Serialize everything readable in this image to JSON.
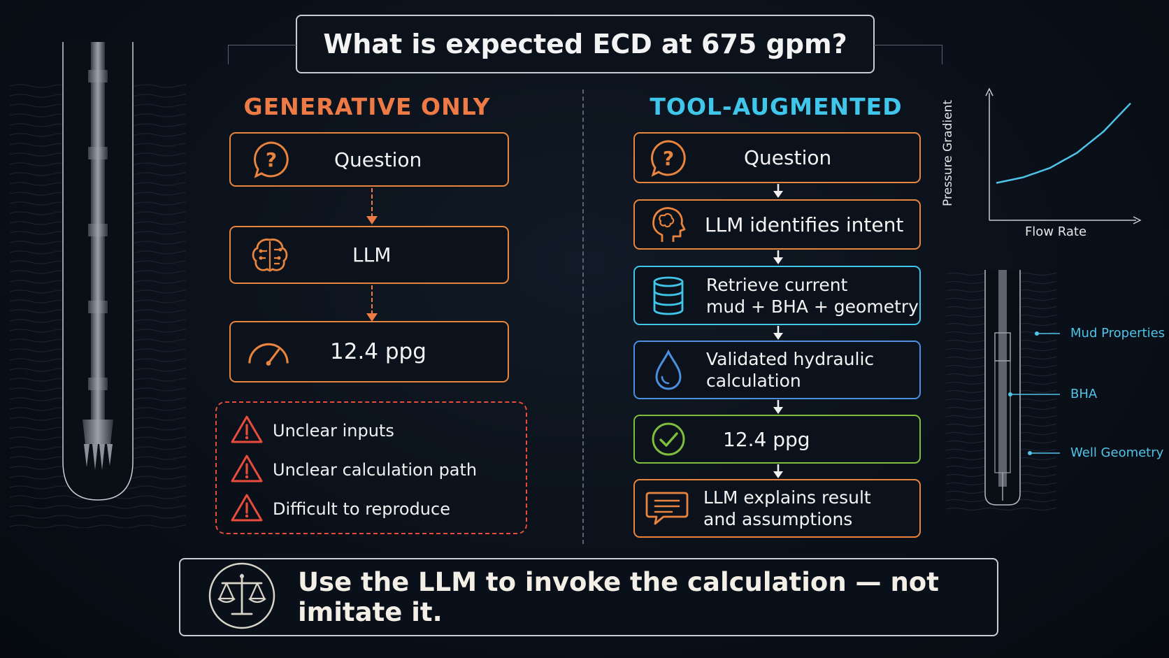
{
  "title": "What is expected ECD at 675 gpm?",
  "generative": {
    "heading": "GENERATIVE ONLY",
    "steps": [
      "Question",
      "LLM",
      "12.4 ppg"
    ],
    "issues": [
      "Unclear inputs",
      "Unclear calculation path",
      "Difficult to reproduce"
    ]
  },
  "tool": {
    "heading": "TOOL-AUGMENTED",
    "steps": [
      {
        "line1": "Question",
        "line2": ""
      },
      {
        "line1": "LLM identifies intent",
        "line2": ""
      },
      {
        "line1": "Retrieve current",
        "line2": "mud + BHA + geometry"
      },
      {
        "line1": "Validated hydraulic",
        "line2": "calculation"
      },
      {
        "line1": "12.4 ppg",
        "line2": ""
      },
      {
        "line1": "LLM explains result",
        "line2": "and assumptions"
      }
    ]
  },
  "takeaway": "Use the LLM to invoke the calculation — not imitate it.",
  "chart_data": {
    "type": "line",
    "xlabel": "Flow Rate",
    "ylabel": "Pressure Gradient",
    "series": [
      {
        "x": [
          0,
          0.2,
          0.4,
          0.6,
          0.8,
          1.0
        ],
        "values": [
          0.1,
          0.16,
          0.26,
          0.42,
          0.65,
          0.95
        ]
      }
    ]
  },
  "wellbore_labels": [
    "Mud Properties",
    "BHA",
    "Well Geometry"
  ],
  "colors": {
    "orange": "#e8843e",
    "red": "#e84d3b",
    "cyan": "#3fc6ea",
    "blue": "#4a8fe0",
    "green": "#7dbf3c",
    "light_blue": "#4fc3e8"
  },
  "icons": [
    "question-bubble-icon",
    "brain-circuit-icon",
    "gauge-icon",
    "warning-icon",
    "head-brain-icon",
    "database-icon",
    "droplet-icon",
    "check-circle-icon",
    "chat-bubble-icon",
    "balance-scale-icon"
  ]
}
